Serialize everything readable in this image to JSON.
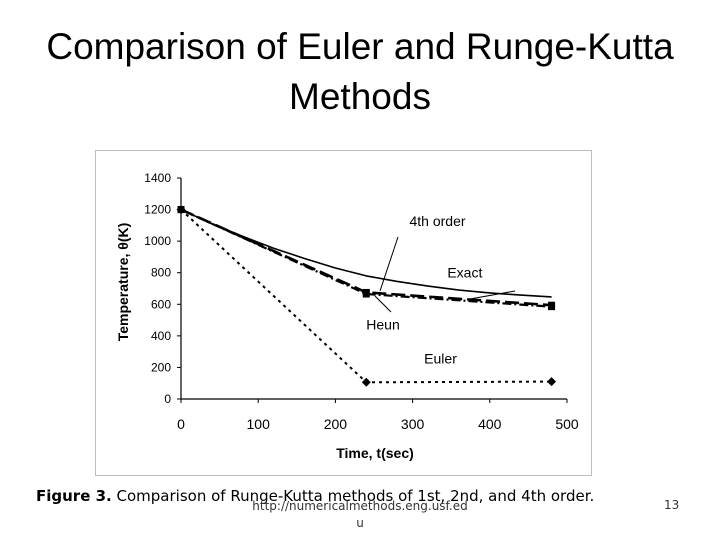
{
  "slide": {
    "title": "Comparison of Euler and Runge-Kutta Methods",
    "caption_label": "Figure 3.",
    "caption_text": "Comparison of Runge-Kutta methods of 1st, 2nd, and 4th order.",
    "footer_url": "http://numericalmethods.eng.usf.edu",
    "page_number": "13"
  },
  "chart_data": {
    "type": "line",
    "xlabel": "Time, t(sec)",
    "ylabel": "Temperature, θ(K)",
    "xlim": [
      0,
      500
    ],
    "ylim": [
      0,
      1400
    ],
    "x_ticks": [
      0,
      100,
      200,
      300,
      400,
      500
    ],
    "y_ticks": [
      0,
      200,
      400,
      600,
      800,
      1000,
      1200,
      1400
    ],
    "grid": false,
    "series": [
      {
        "name": "Exact",
        "style": "solid",
        "x": [
          0,
          40,
          80,
          120,
          160,
          200,
          240,
          280,
          320,
          360,
          400,
          440,
          480
        ],
        "y": [
          1200,
          1110,
          1030,
          955,
          890,
          830,
          780,
          745,
          715,
          690,
          672,
          658,
          647
        ]
      },
      {
        "name": "4th order",
        "style": "long-dash",
        "marker": "square",
        "x": [
          0,
          240,
          480
        ],
        "y": [
          1200,
          675,
          594
        ]
      },
      {
        "name": "Heun",
        "style": "dash-dot",
        "marker": "square",
        "x": [
          0,
          240,
          480
        ],
        "y": [
          1200,
          665,
          585
        ]
      },
      {
        "name": "Euler",
        "style": "dotted",
        "marker": "diamond",
        "x": [
          0,
          240,
          480
        ],
        "y": [
          1200,
          106,
          110
        ]
      }
    ],
    "annotations": [
      {
        "text": "4th order",
        "x": 296,
        "y": 1095
      },
      {
        "text": "Exact",
        "x": 345,
        "y": 770
      },
      {
        "text": "Heun",
        "x": 240,
        "y": 440
      },
      {
        "text": "Euler",
        "x": 315,
        "y": 225
      }
    ],
    "colors": {
      "line": "#000000",
      "frame": "#bdbdbd"
    }
  }
}
